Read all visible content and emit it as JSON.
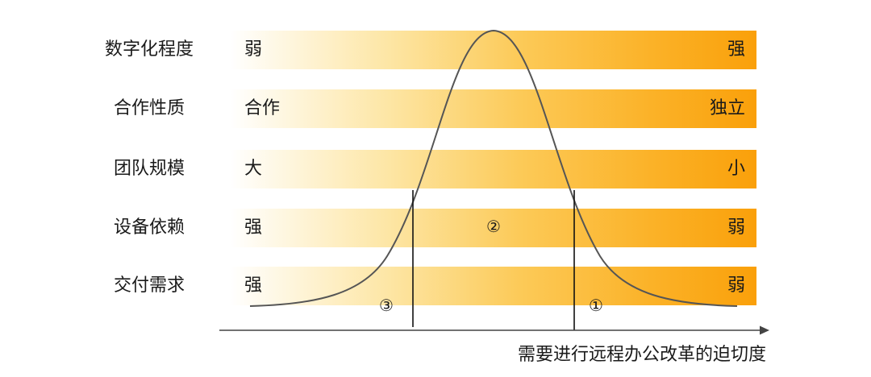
{
  "rows": [
    {
      "label": "数字化程度",
      "left": "弱",
      "right": "强"
    },
    {
      "label": "合作性质",
      "left": "合作",
      "right": "独立"
    },
    {
      "label": "团队规模",
      "left": "大",
      "right": "小"
    },
    {
      "label": "设备依赖",
      "left": "强",
      "right": "弱"
    },
    {
      "label": "交付需求",
      "left": "强",
      "right": "弱"
    }
  ],
  "regions": {
    "one": "①",
    "two": "②",
    "three": "③"
  },
  "x_axis_label": "需要进行远程办公改革的迫切度",
  "colors": {
    "band_start": "#ffffff",
    "band_end": "#f9a00a",
    "curve": "#555555",
    "axis": "#444444"
  }
}
